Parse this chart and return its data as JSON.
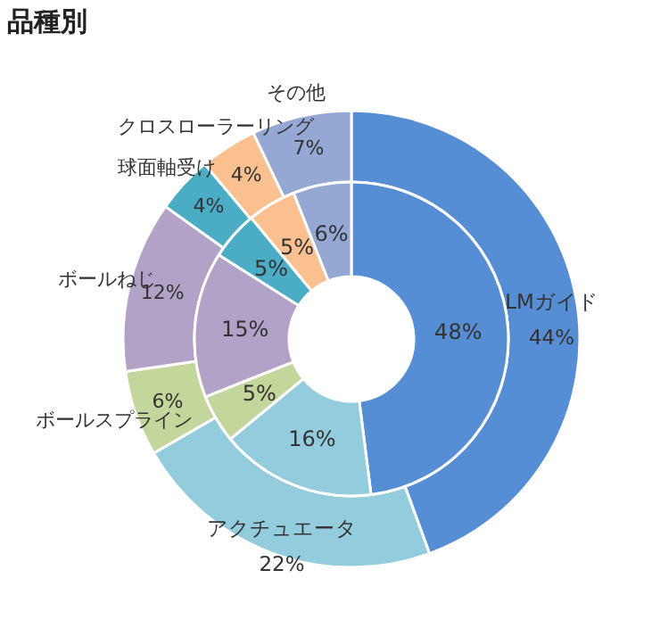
{
  "chart_data": {
    "type": "donut",
    "title": "品種別",
    "categories": [
      "LMガイド",
      "アクチュエータ",
      "ボールスプライン",
      "ボールねじ",
      "球面軸受け",
      "クロスローラーリング",
      "その他"
    ],
    "colors": [
      "#558ed5",
      "#93cddd",
      "#c3d69b",
      "#b3a2c7",
      "#4bacc6",
      "#fac090",
      "#95a7d3"
    ],
    "series": [
      {
        "values": [
          44,
          22,
          6,
          12,
          4,
          4,
          7
        ],
        "value_labels": [
          "44%",
          "22%",
          "6%",
          "12%",
          "4%",
          "4%",
          "7%"
        ]
      },
      {
        "values": [
          48,
          16,
          5,
          15,
          5,
          5,
          6
        ],
        "value_labels": [
          "48%",
          "16%",
          "5%",
          "15%",
          "5%",
          "5%",
          "6%"
        ]
      }
    ]
  }
}
